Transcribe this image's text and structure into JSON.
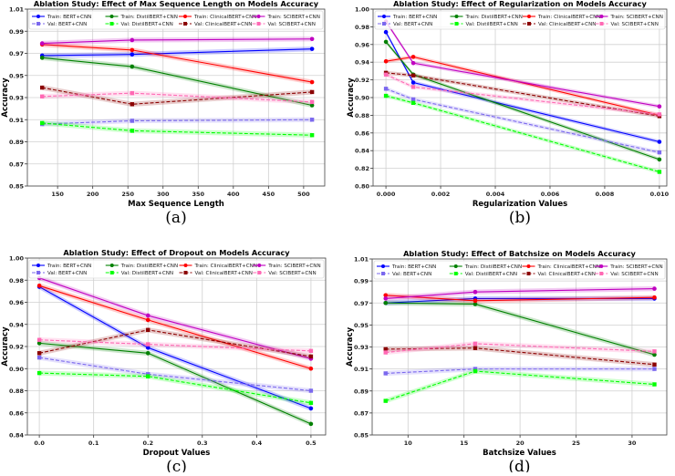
{
  "chart_data": [
    {
      "type": "line",
      "panel_label": "(a)",
      "title": "Ablation Study: Effect of Max Sequence Length on Models Accuracy",
      "xlabel": "Max Sequence Length",
      "ylabel": "Accuracy",
      "x": [
        128,
        256,
        512
      ],
      "xlim": [
        107,
        530
      ],
      "ylim": [
        0.85,
        1.01
      ],
      "xticks": [
        150,
        200,
        250,
        300,
        350,
        400,
        450,
        500
      ],
      "xtick_labels": [
        "150",
        "200",
        "250",
        "300",
        "350",
        "400",
        "450",
        "500"
      ],
      "yticks": [
        0.85,
        0.87,
        0.89,
        0.91,
        0.93,
        0.95,
        0.97,
        0.99,
        1.01
      ],
      "ytick_labels": [
        "0.85",
        "0.87",
        "0.89",
        "0.91",
        "0.93",
        "0.95",
        "0.97",
        "0.99",
        "1.01"
      ],
      "grid": true,
      "legend_position": "top",
      "series": [
        {
          "name": "Train: BERT+CNN",
          "color": "#0000ff",
          "style": "solid",
          "marker": "circle",
          "values": [
            0.968,
            0.969,
            0.974
          ]
        },
        {
          "name": "Train: DistilBERT+CNN",
          "color": "#008000",
          "style": "solid",
          "marker": "circle",
          "values": [
            0.966,
            0.958,
            0.923
          ]
        },
        {
          "name": "Train: ClinicalBERT+CNN",
          "color": "#ff0000",
          "style": "solid",
          "marker": "circle",
          "values": [
            0.978,
            0.973,
            0.944
          ]
        },
        {
          "name": "Train: SCIBERT+CNN",
          "color": "#c000c0",
          "style": "solid",
          "marker": "circle",
          "values": [
            0.979,
            0.982,
            0.983
          ]
        },
        {
          "name": "Val: BERT+CNN",
          "color": "#7b68ee",
          "style": "dashed",
          "marker": "square",
          "values": [
            0.906,
            0.909,
            0.91
          ]
        },
        {
          "name": "Val: DistilBERT+CNN",
          "color": "#00ff00",
          "style": "dashed",
          "marker": "square",
          "values": [
            0.907,
            0.9,
            0.896
          ]
        },
        {
          "name": "Val: ClinicalBERT+CNN",
          "color": "#8b0000",
          "style": "dashed",
          "marker": "square",
          "values": [
            0.939,
            0.924,
            0.935
          ]
        },
        {
          "name": "Val: SCIBERT+CNN",
          "color": "#ff69b4",
          "style": "dashed",
          "marker": "square",
          "values": [
            0.931,
            0.934,
            0.926
          ]
        }
      ]
    },
    {
      "type": "line",
      "panel_label": "(b)",
      "title": "Ablation Study: Effect of Regularization on Models Accuracy",
      "xlabel": "Regularization Values",
      "ylabel": "Accuracy",
      "x": [
        0.0,
        0.001,
        0.01
      ],
      "xlim": [
        -0.00047,
        0.01027
      ],
      "ylim": [
        0.8,
        1.0
      ],
      "xticks": [
        0,
        0.002,
        0.004,
        0.006,
        0.008,
        0.01
      ],
      "xtick_labels": [
        "0.000",
        "0.002",
        "0.004",
        "0.006",
        "0.008",
        "0.010"
      ],
      "yticks": [
        0.8,
        0.82,
        0.84,
        0.86,
        0.88,
        0.9,
        0.92,
        0.94,
        0.96,
        0.98,
        1.0
      ],
      "ytick_labels": [
        "0.80",
        "0.82",
        "0.84",
        "0.86",
        "0.88",
        "0.90",
        "0.92",
        "0.94",
        "0.96",
        "0.98",
        "1.00"
      ],
      "grid": true,
      "legend_position": "top",
      "series": [
        {
          "name": "Train: BERT+CNN",
          "color": "#0000ff",
          "style": "solid",
          "marker": "circle",
          "values": [
            0.974,
            0.917,
            0.85
          ]
        },
        {
          "name": "Train: DistilBERT+CNN",
          "color": "#008000",
          "style": "solid",
          "marker": "circle",
          "values": [
            0.963,
            0.926,
            0.83
          ]
        },
        {
          "name": "Train: ClinicalBERT+CNN",
          "color": "#ff0000",
          "style": "solid",
          "marker": "circle",
          "values": [
            0.941,
            0.946,
            0.88
          ]
        },
        {
          "name": "Train: SCIBERT+CNN",
          "color": "#c000c0",
          "style": "solid",
          "marker": "circle",
          "values": [
            0.986,
            0.939,
            0.89
          ]
        },
        {
          "name": "Val: BERT+CNN",
          "color": "#7b68ee",
          "style": "dashed",
          "marker": "square",
          "values": [
            0.91,
            0.898,
            0.838
          ]
        },
        {
          "name": "Val: DistilBERT+CNN",
          "color": "#00ff00",
          "style": "dashed",
          "marker": "square",
          "values": [
            0.902,
            0.894,
            0.816
          ]
        },
        {
          "name": "Val: ClinicalBERT+CNN",
          "color": "#8b0000",
          "style": "dashed",
          "marker": "square",
          "values": [
            0.928,
            0.925,
            0.879
          ]
        },
        {
          "name": "Val: SCIBERT+CNN",
          "color": "#ff69b4",
          "style": "dashed",
          "marker": "square",
          "values": [
            0.926,
            0.912,
            0.881
          ]
        }
      ]
    },
    {
      "type": "line",
      "panel_label": "(c)",
      "title": "Ablation Study: Effect of Dropout on Models Accuracy",
      "xlabel": "Dropout Values",
      "ylabel": "Accuracy",
      "x": [
        0.0,
        0.2,
        0.5
      ],
      "xlim": [
        -0.022,
        0.527
      ],
      "ylim": [
        0.84,
        1.0
      ],
      "xticks": [
        0,
        0.1,
        0.2,
        0.3,
        0.4,
        0.5
      ],
      "xtick_labels": [
        "0.0",
        "0.1",
        "0.2",
        "0.3",
        "0.4",
        "0.5"
      ],
      "yticks": [
        0.84,
        0.86,
        0.88,
        0.9,
        0.92,
        0.94,
        0.96,
        0.98,
        1.0
      ],
      "ytick_labels": [
        "0.84",
        "0.86",
        "0.88",
        "0.90",
        "0.92",
        "0.94",
        "0.96",
        "0.98",
        "1.00"
      ],
      "grid": true,
      "legend_position": "top",
      "series": [
        {
          "name": "Train: BERT+CNN",
          "color": "#0000ff",
          "style": "solid",
          "marker": "circle",
          "values": [
            0.974,
            0.919,
            0.864
          ]
        },
        {
          "name": "Train: DistilBERT+CNN",
          "color": "#008000",
          "style": "solid",
          "marker": "circle",
          "values": [
            0.923,
            0.914,
            0.85
          ]
        },
        {
          "name": "Train: ClinicalBERT+CNN",
          "color": "#ff0000",
          "style": "solid",
          "marker": "circle",
          "values": [
            0.975,
            0.944,
            0.9
          ]
        },
        {
          "name": "Train: SCIBERT+CNN",
          "color": "#c000c0",
          "style": "solid",
          "marker": "circle",
          "values": [
            0.982,
            0.948,
            0.909
          ]
        },
        {
          "name": "Val: BERT+CNN",
          "color": "#7b68ee",
          "style": "dashed",
          "marker": "square",
          "values": [
            0.91,
            0.895,
            0.88
          ]
        },
        {
          "name": "Val: DistilBERT+CNN",
          "color": "#00ff00",
          "style": "dashed",
          "marker": "square",
          "values": [
            0.896,
            0.893,
            0.869
          ]
        },
        {
          "name": "Val: ClinicalBERT+CNN",
          "color": "#8b0000",
          "style": "dashed",
          "marker": "square",
          "values": [
            0.914,
            0.935,
            0.911
          ]
        },
        {
          "name": "Val: SCIBERT+CNN",
          "color": "#ff69b4",
          "style": "dashed",
          "marker": "square",
          "values": [
            0.926,
            0.922,
            0.916
          ]
        }
      ]
    },
    {
      "type": "line",
      "panel_label": "(d)",
      "title": "Ablation Study: Effect of Batchsize on Models Accuracy",
      "xlabel": "Batchsize Values",
      "ylabel": "Accuracy",
      "x": [
        8,
        16,
        32
      ],
      "xlim": [
        6.8,
        33.1
      ],
      "ylim": [
        0.85,
        1.01
      ],
      "xticks": [
        10,
        15,
        20,
        25,
        30
      ],
      "xtick_labels": [
        "10",
        "15",
        "20",
        "25",
        "30"
      ],
      "yticks": [
        0.85,
        0.87,
        0.89,
        0.91,
        0.93,
        0.95,
        0.97,
        0.99,
        1.01
      ],
      "ytick_labels": [
        "0.85",
        "0.87",
        "0.89",
        "0.91",
        "0.93",
        "0.95",
        "0.97",
        "0.99",
        "1.01"
      ],
      "grid": true,
      "legend_position": "top",
      "series": [
        {
          "name": "Train: BERT+CNN",
          "color": "#0000ff",
          "style": "solid",
          "marker": "circle",
          "values": [
            0.97,
            0.974,
            0.974
          ]
        },
        {
          "name": "Train: DistilBERT+CNN",
          "color": "#008000",
          "style": "solid",
          "marker": "circle",
          "values": [
            0.97,
            0.969,
            0.923
          ]
        },
        {
          "name": "Train: ClinicalBERT+CNN",
          "color": "#ff0000",
          "style": "solid",
          "marker": "circle",
          "values": [
            0.977,
            0.972,
            0.975
          ]
        },
        {
          "name": "Train: SCIBERT+CNN",
          "color": "#c000c0",
          "style": "solid",
          "marker": "circle",
          "values": [
            0.974,
            0.98,
            0.983
          ]
        },
        {
          "name": "Val: BERT+CNN",
          "color": "#7b68ee",
          "style": "dashed",
          "marker": "square",
          "values": [
            0.906,
            0.91,
            0.91
          ]
        },
        {
          "name": "Val: DistilBERT+CNN",
          "color": "#00ff00",
          "style": "dashed",
          "marker": "square",
          "values": [
            0.881,
            0.908,
            0.896
          ]
        },
        {
          "name": "Val: ClinicalBERT+CNN",
          "color": "#8b0000",
          "style": "dashed",
          "marker": "square",
          "values": [
            0.928,
            0.929,
            0.914
          ]
        },
        {
          "name": "Val: SCIBERT+CNN",
          "color": "#ff69b4",
          "style": "dashed",
          "marker": "square",
          "values": [
            0.925,
            0.933,
            0.926
          ]
        }
      ]
    }
  ]
}
